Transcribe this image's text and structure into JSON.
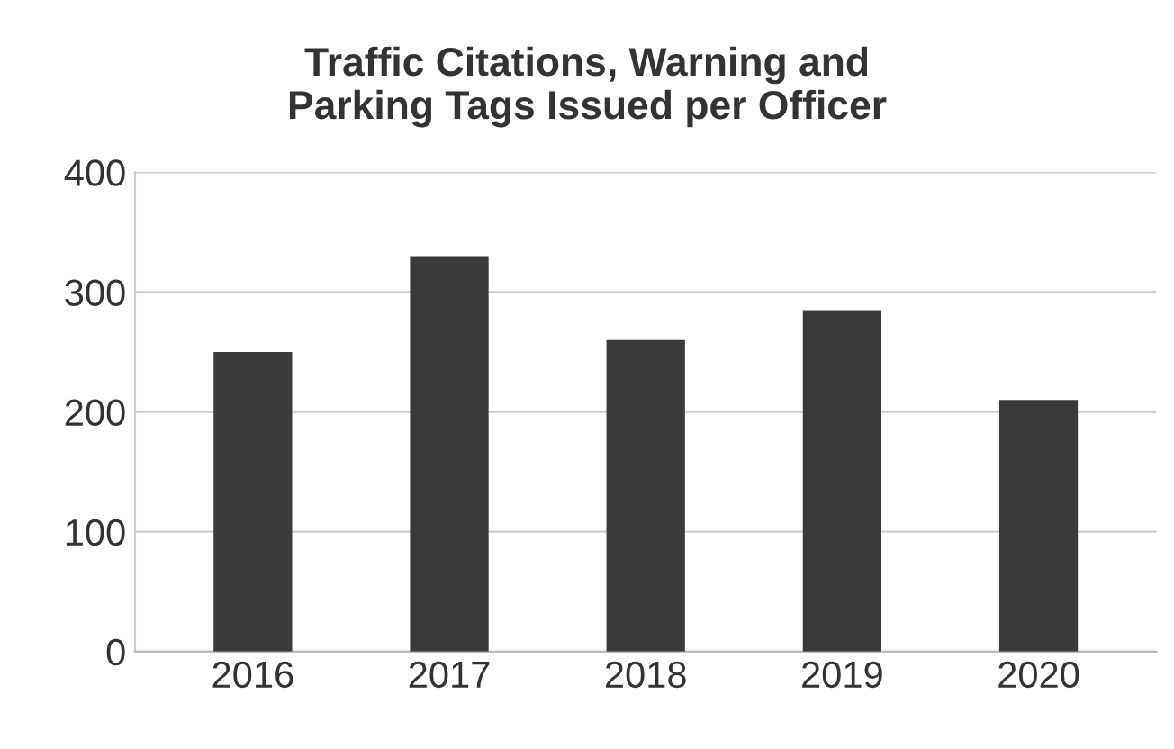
{
  "chart_data": {
    "type": "bar",
    "title": "Traffic Citations, Warning and\nParking Tags Issued per Officer",
    "categories": [
      "2016",
      "2017",
      "2018",
      "2019",
      "2020"
    ],
    "values": [
      250,
      330,
      260,
      285,
      210
    ],
    "color": "#3a3a3a",
    "ylim": [
      0,
      400
    ],
    "yticks": [
      0,
      100,
      200,
      300,
      400
    ],
    "grid": "y"
  }
}
